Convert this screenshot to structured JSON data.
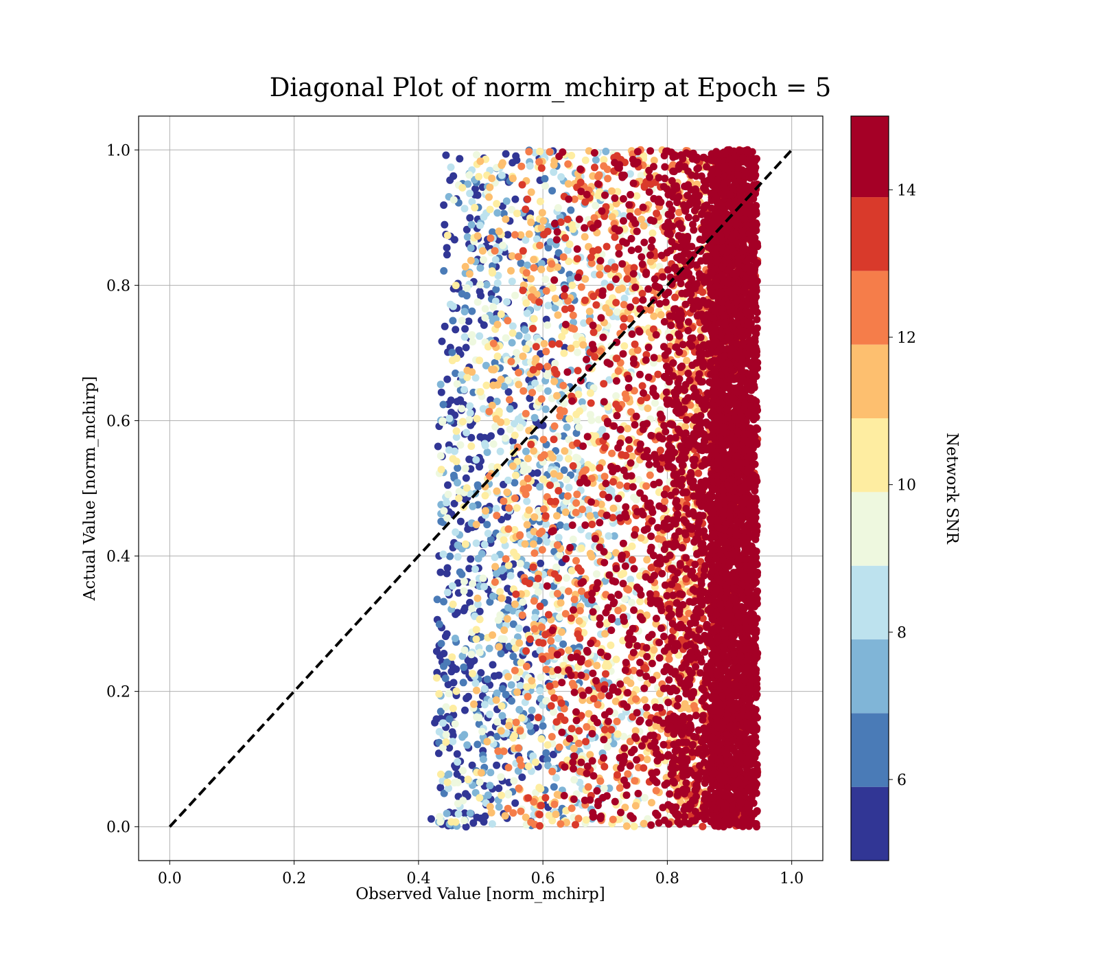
{
  "chart_data": {
    "type": "scatter",
    "title": "Diagonal Plot of norm_mchirp at Epoch = 5",
    "xlabel": "Observed Value [norm_mchirp]",
    "ylabel": "Actual Value [norm_mchirp]",
    "xlim": [
      -0.05,
      1.05
    ],
    "ylim": [
      -0.05,
      1.05
    ],
    "xticks": [
      0.0,
      0.2,
      0.4,
      0.6,
      0.8,
      1.0
    ],
    "yticks": [
      0.0,
      0.2,
      0.4,
      0.6,
      0.8,
      1.0
    ],
    "xtick_labels": [
      "0.0",
      "0.2",
      "0.4",
      "0.6",
      "0.8",
      "1.0"
    ],
    "ytick_labels": [
      "0.0",
      "0.2",
      "0.4",
      "0.6",
      "0.8",
      "1.0"
    ],
    "grid": true,
    "reference_line": {
      "x": [
        0,
        1
      ],
      "y": [
        0,
        1
      ],
      "style": "dashed",
      "color": "#000000"
    },
    "colorbar": {
      "label": "Network SNR",
      "range": [
        4.9,
        15.0
      ],
      "ticks": [
        6,
        8,
        10,
        12,
        14
      ],
      "tick_labels": [
        "6",
        "8",
        "10",
        "12",
        "14"
      ],
      "colormap": "RdYlBu_r",
      "levels": [
        {
          "snr_band": [
            4.9,
            5.9
          ],
          "color": "#313695"
        },
        {
          "snr_band": [
            5.9,
            6.9
          ],
          "color": "#4a7bb7"
        },
        {
          "snr_band": [
            6.9,
            7.9
          ],
          "color": "#80b5d7"
        },
        {
          "snr_band": [
            7.9,
            8.9
          ],
          "color": "#bde2ee"
        },
        {
          "snr_band": [
            8.9,
            9.9
          ],
          "color": "#eef8df"
        },
        {
          "snr_band": [
            9.9,
            10.9
          ],
          "color": "#feeda1"
        },
        {
          "snr_band": [
            10.9,
            11.9
          ],
          "color": "#fdbf6f"
        },
        {
          "snr_band": [
            11.9,
            12.9
          ],
          "color": "#f57d4a"
        },
        {
          "snr_band": [
            12.9,
            13.9
          ],
          "color": "#d93a2b"
        },
        {
          "snr_band": [
            13.9,
            15.0
          ],
          "color": "#a50026"
        }
      ]
    },
    "point_distribution": {
      "observed_range": [
        0.41,
        0.96
      ],
      "actual_range": [
        0.0,
        1.0
      ],
      "trend": "high SNR points cluster near observed 0.85-0.95; low SNR points near observed 0.42-0.55",
      "approx_point_count": 9000
    },
    "legend": "none"
  }
}
